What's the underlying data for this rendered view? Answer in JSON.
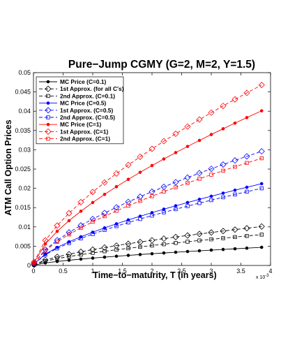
{
  "chart_data": {
    "type": "line",
    "title": "Pure−Jump CGMY (G=2, M=2, Y=1.5)",
    "xlabel": "Time−to−maturity, T (in years)",
    "ylabel": "ATM Call Option Prices",
    "x_exponent_label": "x 10",
    "x_exponent_power": "-3",
    "xlim": [
      0,
      0.004
    ],
    "ylim": [
      0,
      0.05
    ],
    "x_ticks": [
      0,
      0.0005,
      0.001,
      0.0015,
      0.002,
      0.0025,
      0.003,
      0.0035,
      0.004
    ],
    "x_tick_labels": [
      "0",
      "0.5",
      "1",
      "1.5",
      "2",
      "2.5",
      "3",
      "3.5",
      "4"
    ],
    "y_ticks": [
      0,
      0.005,
      0.01,
      0.015,
      0.02,
      0.025,
      0.03,
      0.035,
      0.04,
      0.045,
      0.05
    ],
    "y_tick_labels": [
      "0",
      "0.005",
      "0.01",
      "0.015",
      "0.02",
      "0.025",
      "0.03",
      "0.035",
      "0.04",
      "0.045",
      "0.05"
    ],
    "grid": false,
    "legend_position": "top-left",
    "x": [
      1e-05,
      0.0002,
      0.0004,
      0.0006,
      0.0008,
      0.001,
      0.0012,
      0.0014,
      0.0016,
      0.0018,
      0.002,
      0.0022,
      0.0024,
      0.0026,
      0.0028,
      0.003,
      0.0032,
      0.0034,
      0.0036,
      0.00385
    ],
    "series": [
      {
        "name": "MC Price (C=0.1)",
        "color": "#000000",
        "dash": "solid",
        "marker": "dot",
        "scale": 0.0047,
        "power": 0.6667
      },
      {
        "name": "1st Approx. (for all C's)",
        "color": "#000000",
        "dash": "dashed",
        "marker": "diamond",
        "scale": 0.0101,
        "power": 0.6667
      },
      {
        "name": "2nd Approx. (C=0.1)",
        "color": "#000000",
        "dash": "dashed",
        "marker": "square",
        "scale": 0.008,
        "power": 0.6667
      },
      {
        "name": "MC Price (C=0.5)",
        "color": "#0000ff",
        "dash": "solid",
        "marker": "dot",
        "scale": 0.0212,
        "power": 0.6667
      },
      {
        "name": "1st Approx. (C=0.5)",
        "color": "#0000ff",
        "dash": "dashed",
        "marker": "diamond",
        "scale": 0.0296,
        "power": 0.6667
      },
      {
        "name": "2nd Approx. (C=0.5)",
        "color": "#0000ff",
        "dash": "dashed",
        "marker": "square",
        "scale": 0.02,
        "power": 0.6667
      },
      {
        "name": "MC Price (C=1)",
        "color": "#ff0000",
        "dash": "solid",
        "marker": "dot",
        "scale": 0.0401,
        "power": 0.6667
      },
      {
        "name": "1st Approx. (C=1)",
        "color": "#ff0000",
        "dash": "dashed",
        "marker": "diamond",
        "scale": 0.0468,
        "power": 0.6667
      },
      {
        "name": "2nd Approx. (C=1)",
        "color": "#ff0000",
        "dash": "dashed",
        "marker": "square",
        "scale": 0.0278,
        "power": 0.6667
      }
    ]
  }
}
